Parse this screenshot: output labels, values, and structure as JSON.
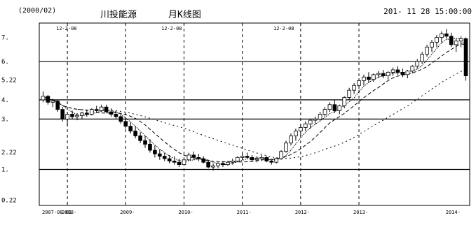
{
  "header": {
    "code": "(2000/02)",
    "name": "川投能源",
    "kind": "月K线图",
    "time": "201- 11 28 15:00:00"
  },
  "chart_data": {
    "type": "candlestick",
    "title": "",
    "y_ticks": [
      {
        "value": 7,
        "label": "7."
      },
      {
        "value": 6,
        "label": "6."
      },
      {
        "value": 5.22,
        "label": "5.22"
      },
      {
        "value": 4.4,
        "label": "4."
      },
      {
        "value": 3.6,
        "label": "3."
      },
      {
        "value": 2.22,
        "label": "2.22"
      },
      {
        "value": 1.5,
        "label": "1."
      },
      {
        "value": 0.22,
        "label": "0.22"
      }
    ],
    "ylim": [
      0.0,
      7.6
    ],
    "x_labels": [
      "2007-08-01",
      "2008-",
      "2009-",
      "2010-",
      "2011-",
      "2012-",
      "2013-",
      "2014-"
    ],
    "annotations": [
      "12-2-08",
      "12-2-08",
      "12-2-08"
    ],
    "months": 88,
    "candles": [
      [
        4.4,
        4.75,
        4.3,
        4.55
      ],
      [
        4.55,
        4.6,
        4.2,
        4.3
      ],
      [
        4.3,
        4.45,
        4.1,
        4.35
      ],
      [
        4.35,
        4.4,
        3.9,
        4.0
      ],
      [
        4.0,
        4.1,
        3.5,
        3.6
      ],
      [
        3.6,
        3.9,
        3.3,
        3.8
      ],
      [
        3.8,
        3.95,
        3.6,
        3.7
      ],
      [
        3.7,
        3.85,
        3.55,
        3.75
      ],
      [
        3.75,
        3.9,
        3.6,
        3.85
      ],
      [
        3.85,
        4.0,
        3.7,
        3.8
      ],
      [
        3.8,
        4.05,
        3.75,
        4.0
      ],
      [
        4.0,
        4.15,
        3.85,
        3.95
      ],
      [
        3.95,
        4.2,
        3.9,
        4.1
      ],
      [
        4.1,
        4.2,
        3.85,
        3.9
      ],
      [
        3.9,
        4.05,
        3.7,
        3.8
      ],
      [
        3.8,
        3.95,
        3.6,
        3.7
      ],
      [
        3.7,
        3.85,
        3.4,
        3.5
      ],
      [
        3.5,
        3.7,
        3.2,
        3.3
      ],
      [
        3.3,
        3.45,
        3.0,
        3.1
      ],
      [
        3.1,
        3.3,
        2.8,
        2.9
      ],
      [
        2.9,
        3.05,
        2.6,
        2.7
      ],
      [
        2.7,
        2.9,
        2.4,
        2.55
      ],
      [
        2.55,
        2.75,
        2.2,
        2.3
      ],
      [
        2.3,
        2.5,
        2.0,
        2.15
      ],
      [
        2.15,
        2.35,
        1.9,
        2.05
      ],
      [
        2.05,
        2.2,
        1.85,
        1.95
      ],
      [
        1.95,
        2.1,
        1.75,
        1.85
      ],
      [
        1.85,
        2.05,
        1.7,
        1.8
      ],
      [
        1.8,
        1.95,
        1.6,
        1.7
      ],
      [
        1.7,
        1.95,
        1.65,
        1.9
      ],
      [
        1.9,
        2.2,
        1.85,
        2.1
      ],
      [
        2.1,
        2.25,
        1.9,
        2.0
      ],
      [
        2.0,
        2.15,
        1.85,
        1.95
      ],
      [
        1.95,
        2.05,
        1.75,
        1.8
      ],
      [
        1.8,
        1.9,
        1.55,
        1.6
      ],
      [
        1.6,
        1.75,
        1.45,
        1.65
      ],
      [
        1.65,
        1.8,
        1.55,
        1.75
      ],
      [
        1.75,
        1.85,
        1.6,
        1.7
      ],
      [
        1.7,
        1.85,
        1.65,
        1.8
      ],
      [
        1.8,
        1.95,
        1.7,
        1.85
      ],
      [
        1.85,
        2.05,
        1.8,
        2.0
      ],
      [
        2.0,
        2.15,
        1.9,
        2.05
      ],
      [
        2.05,
        2.2,
        1.95,
        2.0
      ],
      [
        2.0,
        2.1,
        1.85,
        1.9
      ],
      [
        1.9,
        2.05,
        1.8,
        1.95
      ],
      [
        1.95,
        2.1,
        1.85,
        2.0
      ],
      [
        2.0,
        2.05,
        1.8,
        1.85
      ],
      [
        1.85,
        1.95,
        1.7,
        1.8
      ],
      [
        1.8,
        2.0,
        1.75,
        1.95
      ],
      [
        1.95,
        2.3,
        1.9,
        2.25
      ],
      [
        2.25,
        2.7,
        2.2,
        2.6
      ],
      [
        2.6,
        3.0,
        2.5,
        2.9
      ],
      [
        2.9,
        3.2,
        2.7,
        3.1
      ],
      [
        3.1,
        3.35,
        2.9,
        3.25
      ],
      [
        3.25,
        3.5,
        3.1,
        3.4
      ],
      [
        3.4,
        3.6,
        3.2,
        3.55
      ],
      [
        3.55,
        3.7,
        3.4,
        3.6
      ],
      [
        3.6,
        3.9,
        3.5,
        3.8
      ],
      [
        3.8,
        4.1,
        3.7,
        4.0
      ],
      [
        4.0,
        4.3,
        3.9,
        4.2
      ],
      [
        4.2,
        4.4,
        3.85,
        3.95
      ],
      [
        3.95,
        4.2,
        3.8,
        4.15
      ],
      [
        4.15,
        4.55,
        4.05,
        4.5
      ],
      [
        4.5,
        4.9,
        4.4,
        4.8
      ],
      [
        4.8,
        5.1,
        4.65,
        5.0
      ],
      [
        5.0,
        5.3,
        4.85,
        5.2
      ],
      [
        5.2,
        5.45,
        5.0,
        5.35
      ],
      [
        5.35,
        5.55,
        5.1,
        5.25
      ],
      [
        5.25,
        5.5,
        5.15,
        5.45
      ],
      [
        5.45,
        5.6,
        5.3,
        5.5
      ],
      [
        5.5,
        5.65,
        5.3,
        5.4
      ],
      [
        5.4,
        5.6,
        5.25,
        5.55
      ],
      [
        5.55,
        5.75,
        5.4,
        5.65
      ],
      [
        5.65,
        5.8,
        5.45,
        5.55
      ],
      [
        5.55,
        5.7,
        5.35,
        5.45
      ],
      [
        5.45,
        5.65,
        5.3,
        5.6
      ],
      [
        5.6,
        5.85,
        5.5,
        5.8
      ],
      [
        5.8,
        6.1,
        5.7,
        6.0
      ],
      [
        6.0,
        6.4,
        5.9,
        6.3
      ],
      [
        6.3,
        6.7,
        6.2,
        6.6
      ],
      [
        6.6,
        6.9,
        6.4,
        6.8
      ],
      [
        6.8,
        7.1,
        6.6,
        7.0
      ],
      [
        7.0,
        7.25,
        6.8,
        7.15
      ],
      [
        7.15,
        7.35,
        6.95,
        7.05
      ],
      [
        7.05,
        7.2,
        6.6,
        6.7
      ],
      [
        6.7,
        6.95,
        6.4,
        6.85
      ],
      [
        6.85,
        7.05,
        6.6,
        6.95
      ],
      [
        6.95,
        7.0,
        5.2,
        5.4
      ]
    ]
  }
}
